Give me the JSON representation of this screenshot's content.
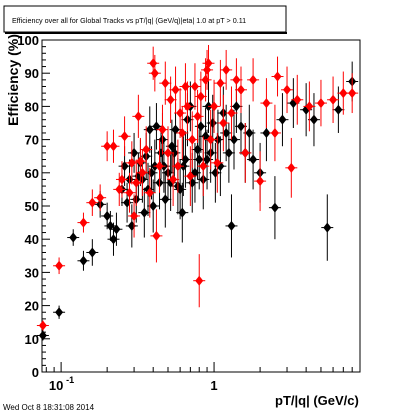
{
  "chart_data": {
    "type": "scatter",
    "title": "Efficiency over all for Global Tracks vs pT/|q| (GeV/q)|eta| 1.0 at pT > 0.11",
    "xlabel": "pT/|q|  (GeV/c)",
    "ylabel": "Efficiency (%)",
    "xscale": "log",
    "xlim": [
      0.075,
      9.0
    ],
    "ylim": [
      0,
      100
    ],
    "grid": false,
    "legend": "none",
    "xtick_labels": [
      {
        "value": 0.1,
        "base": "10",
        "exp": "-1"
      },
      {
        "value": 1,
        "base": "1",
        "exp": ""
      }
    ],
    "ytick_labels": [
      0,
      10,
      20,
      30,
      40,
      50,
      60,
      70,
      80,
      90,
      100
    ],
    "series": [
      {
        "color": "#000000",
        "marker": "diamond",
        "points": [
          [
            0.076,
            11.0,
            1.5
          ],
          [
            0.097,
            18.0,
            2.0
          ],
          [
            0.12,
            40.5,
            2.5
          ],
          [
            0.14,
            33.5,
            3.0
          ],
          [
            0.16,
            36.0,
            4.0
          ],
          [
            0.18,
            50.5,
            4.0
          ],
          [
            0.2,
            47.0,
            4.0
          ],
          [
            0.21,
            44.0,
            4.5
          ],
          [
            0.22,
            40.0,
            5.0
          ],
          [
            0.23,
            43.0,
            5.0
          ],
          [
            0.25,
            55.0,
            5.0
          ],
          [
            0.26,
            62.0,
            6.0
          ],
          [
            0.27,
            51.0,
            6.0
          ],
          [
            0.28,
            58.0,
            6.0
          ],
          [
            0.29,
            44.0,
            6.5
          ],
          [
            0.3,
            66.0,
            6.0
          ],
          [
            0.31,
            52.0,
            7.0
          ],
          [
            0.32,
            59.0,
            7.0
          ],
          [
            0.33,
            63.0,
            7.0
          ],
          [
            0.34,
            58.0,
            7.0
          ],
          [
            0.35,
            48.0,
            7.5
          ],
          [
            0.36,
            65.0,
            7.0
          ],
          [
            0.37,
            55.0,
            8.0
          ],
          [
            0.38,
            73.0,
            7.0
          ],
          [
            0.39,
            60.0,
            8.0
          ],
          [
            0.4,
            50.0,
            8.0
          ],
          [
            0.41,
            62.0,
            8.0
          ],
          [
            0.42,
            74.0,
            7.0
          ],
          [
            0.44,
            57.0,
            8.0
          ],
          [
            0.45,
            66.0,
            8.0
          ],
          [
            0.46,
            70.0,
            8.0
          ],
          [
            0.47,
            62.0,
            8.0
          ],
          [
            0.48,
            52.0,
            8.5
          ],
          [
            0.5,
            60.0,
            8.0
          ],
          [
            0.52,
            57.0,
            8.5
          ],
          [
            0.53,
            68.0,
            8.0
          ],
          [
            0.55,
            66.0,
            8.0
          ],
          [
            0.56,
            73.0,
            8.0
          ],
          [
            0.58,
            56.0,
            8.5
          ],
          [
            0.6,
            55.0,
            9.0
          ],
          [
            0.62,
            48.0,
            9.0
          ],
          [
            0.63,
            62.0,
            9.0
          ],
          [
            0.65,
            64.0,
            8.5
          ],
          [
            0.67,
            76.0,
            8.0
          ],
          [
            0.7,
            80.0,
            7.5
          ],
          [
            0.72,
            57.0,
            9.0
          ],
          [
            0.75,
            60.0,
            9.0
          ],
          [
            0.78,
            67.0,
            9.0
          ],
          [
            0.8,
            64.0,
            9.0
          ],
          [
            0.82,
            74.0,
            8.0
          ],
          [
            0.85,
            58.0,
            9.0
          ],
          [
            0.88,
            71.0,
            8.5
          ],
          [
            0.9,
            64.0,
            9.0
          ],
          [
            0.92,
            80.0,
            8.0
          ],
          [
            0.95,
            66.0,
            9.0
          ],
          [
            0.98,
            75.0,
            8.5
          ],
          [
            1.02,
            60.0,
            9.0
          ],
          [
            1.06,
            70.0,
            9.0
          ],
          [
            1.1,
            62.0,
            9.0
          ],
          [
            1.15,
            78.0,
            8.0
          ],
          [
            1.2,
            72.0,
            8.5
          ],
          [
            1.25,
            66.0,
            9.0
          ],
          [
            1.3,
            44.0,
            9.5
          ],
          [
            1.35,
            70.0,
            9.0
          ],
          [
            1.4,
            80.0,
            8.0
          ],
          [
            1.5,
            74.0,
            8.5
          ],
          [
            1.6,
            66.0,
            9.0
          ],
          [
            1.7,
            72.0,
            8.5
          ],
          [
            1.8,
            64.0,
            9.0
          ],
          [
            2.0,
            60.0,
            9.0
          ],
          [
            2.2,
            72.0,
            8.5
          ],
          [
            2.5,
            49.5,
            9.5
          ],
          [
            2.8,
            76.0,
            8.0
          ],
          [
            3.3,
            81.0,
            7.5
          ],
          [
            4.0,
            79.0,
            8.0
          ],
          [
            4.5,
            76.0,
            8.0
          ],
          [
            5.5,
            43.5,
            10.0
          ],
          [
            6.5,
            79.0,
            7.0
          ],
          [
            8.0,
            87.5,
            6.0
          ]
        ]
      },
      {
        "color": "#ff0000",
        "marker": "diamond",
        "points": [
          [
            0.076,
            14.0,
            1.5
          ],
          [
            0.097,
            32.0,
            2.5
          ],
          [
            0.14,
            45.0,
            3.0
          ],
          [
            0.16,
            51.0,
            4.0
          ],
          [
            0.18,
            52.5,
            4.0
          ],
          [
            0.2,
            68.0,
            4.5
          ],
          [
            0.22,
            68.0,
            5.0
          ],
          [
            0.24,
            55.0,
            5.0
          ],
          [
            0.25,
            58.0,
            5.5
          ],
          [
            0.26,
            71.0,
            6.0
          ],
          [
            0.28,
            54.0,
            6.0
          ],
          [
            0.29,
            63.0,
            6.5
          ],
          [
            0.3,
            47.0,
            6.5
          ],
          [
            0.31,
            57.0,
            7.0
          ],
          [
            0.32,
            77.0,
            6.5
          ],
          [
            0.33,
            63.5,
            7.0
          ],
          [
            0.34,
            60.0,
            7.0
          ],
          [
            0.36,
            67.0,
            7.0
          ],
          [
            0.38,
            54.0,
            7.5
          ],
          [
            0.4,
            93.0,
            5.0
          ],
          [
            0.41,
            90.0,
            5.5
          ],
          [
            0.42,
            41.0,
            8.0
          ],
          [
            0.44,
            62.0,
            8.0
          ],
          [
            0.46,
            73.0,
            7.5
          ],
          [
            0.48,
            87.0,
            6.5
          ],
          [
            0.5,
            66.0,
            8.0
          ],
          [
            0.52,
            82.0,
            7.0
          ],
          [
            0.54,
            58.0,
            8.0
          ],
          [
            0.56,
            85.0,
            7.0
          ],
          [
            0.58,
            62.0,
            8.0
          ],
          [
            0.6,
            78.0,
            7.5
          ],
          [
            0.62,
            72.0,
            8.0
          ],
          [
            0.65,
            86.0,
            7.0
          ],
          [
            0.67,
            80.0,
            7.5
          ],
          [
            0.7,
            59.0,
            9.0
          ],
          [
            0.72,
            70.0,
            8.5
          ],
          [
            0.75,
            86.0,
            7.0
          ],
          [
            0.78,
            77.0,
            8.0
          ],
          [
            0.8,
            27.5,
            8.0
          ],
          [
            0.82,
            83.0,
            7.5
          ],
          [
            0.85,
            62.0,
            9.0
          ],
          [
            0.88,
            88.0,
            6.5
          ],
          [
            0.9,
            91.0,
            6.0
          ],
          [
            0.92,
            93.0,
            5.5
          ],
          [
            0.95,
            70.0,
            9.0
          ],
          [
            1.0,
            80.0,
            8.0
          ],
          [
            1.05,
            63.0,
            9.0
          ],
          [
            1.1,
            87.0,
            7.0
          ],
          [
            1.15,
            75.0,
            8.5
          ],
          [
            1.2,
            91.0,
            6.0
          ],
          [
            1.3,
            78.0,
            8.0
          ],
          [
            1.4,
            88.0,
            6.5
          ],
          [
            1.5,
            85.0,
            7.0
          ],
          [
            1.6,
            66.0,
            9.0
          ],
          [
            1.8,
            88.0,
            6.5
          ],
          [
            2.0,
            57.5,
            9.0
          ],
          [
            2.2,
            81.0,
            7.5
          ],
          [
            2.5,
            72.0,
            8.5
          ],
          [
            2.6,
            89.0,
            6.0
          ],
          [
            3.0,
            85.0,
            7.0
          ],
          [
            3.2,
            61.5,
            9.0
          ],
          [
            3.5,
            82.0,
            7.5
          ],
          [
            4.2,
            80.0,
            7.5
          ],
          [
            5.0,
            81.0,
            7.0
          ],
          [
            6.0,
            82.0,
            7.0
          ],
          [
            7.0,
            84.0,
            6.5
          ],
          [
            8.0,
            84.0,
            6.0
          ]
        ]
      }
    ]
  },
  "footer": {
    "timestamp": "Wed Oct  8 18:31:08 2014"
  }
}
